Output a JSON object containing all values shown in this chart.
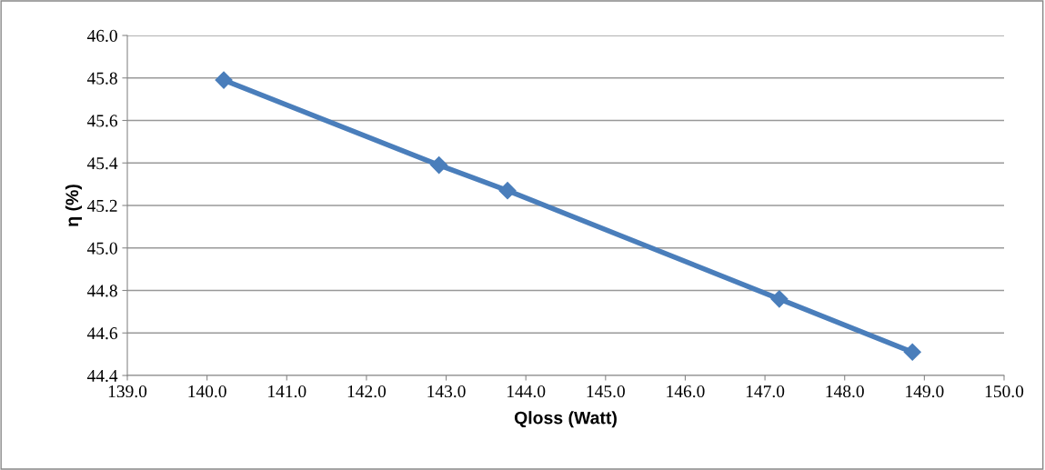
{
  "chart_data": {
    "type": "line",
    "xlabel": "Qloss (Watt)",
    "ylabel": "η (%)",
    "x": [
      140.21,
      142.91,
      143.77,
      147.18,
      148.85
    ],
    "series": [
      {
        "color": "#4a7ebb",
        "values": [
          45.79,
          45.39,
          45.27,
          44.76,
          44.51
        ]
      }
    ],
    "xlim": [
      139.0,
      150.0
    ],
    "xticks": [
      {
        "value": 139,
        "label": "139.0"
      },
      {
        "value": 140,
        "label": "140.0"
      },
      {
        "value": 141,
        "label": "141.0"
      },
      {
        "value": 142,
        "label": "142.0"
      },
      {
        "value": 143,
        "label": "143.0"
      },
      {
        "value": 144,
        "label": "144.0"
      },
      {
        "value": 145,
        "label": "145.0"
      },
      {
        "value": 146,
        "label": "146.0"
      },
      {
        "value": 147,
        "label": "147.0"
      },
      {
        "value": 148,
        "label": "148.0"
      },
      {
        "value": 149,
        "label": "149.0"
      },
      {
        "value": 150,
        "label": "150.0"
      }
    ],
    "ylim": [
      44.4,
      46.0
    ],
    "yticks": [
      {
        "value": 44.4,
        "label": "44.4"
      },
      {
        "value": 44.6,
        "label": "44.6"
      },
      {
        "value": 44.8,
        "label": "44.8"
      },
      {
        "value": 45.0,
        "label": "45.0"
      },
      {
        "value": 45.2,
        "label": "45.2"
      },
      {
        "value": 45.4,
        "label": "45.4"
      },
      {
        "value": 45.6,
        "label": "45.6"
      },
      {
        "value": 45.8,
        "label": "45.8"
      },
      {
        "value": 46.0,
        "label": "46.0"
      }
    ],
    "grid": "y",
    "marker": "diamond",
    "line_style": "solid",
    "legend": false
  }
}
